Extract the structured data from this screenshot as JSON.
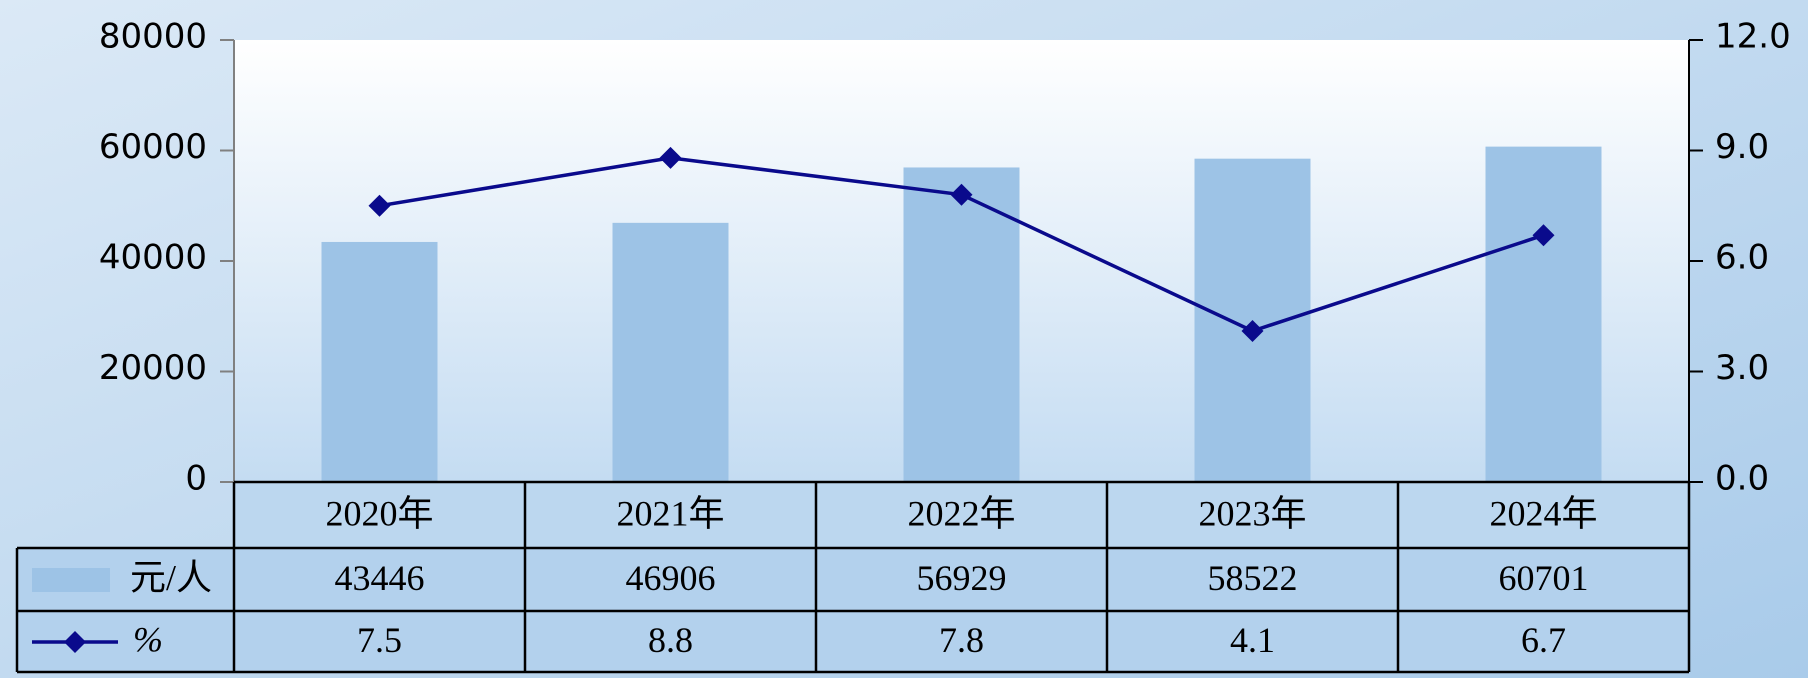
{
  "chart_data": {
    "type": "bar_line",
    "categories": [
      "2020年",
      "2021年",
      "2022年",
      "2023年",
      "2024年"
    ],
    "series": [
      {
        "name": "元/人",
        "color": "#9dc3e6",
        "values": [
          43446,
          46906,
          56929,
          58522,
          60701
        ]
      },
      {
        "name": "%",
        "color": "#0a0a8c",
        "axis": "y2",
        "values": [
          7.5,
          8.8,
          7.8,
          4.1,
          6.7
        ]
      }
    ],
    "ylim": [
      0,
      80000
    ],
    "yticks": [
      0,
      20000,
      40000,
      60000,
      80000
    ],
    "y2lim": [
      0,
      12
    ],
    "y2ticks": [
      {
        "value": 0,
        "label": "0.0"
      },
      {
        "value": 3,
        "label": "3.0"
      },
      {
        "value": 6,
        "label": "6.0"
      },
      {
        "value": 9,
        "label": "9.0"
      },
      {
        "value": 12,
        "label": "12.0"
      }
    ],
    "data_table": true
  }
}
